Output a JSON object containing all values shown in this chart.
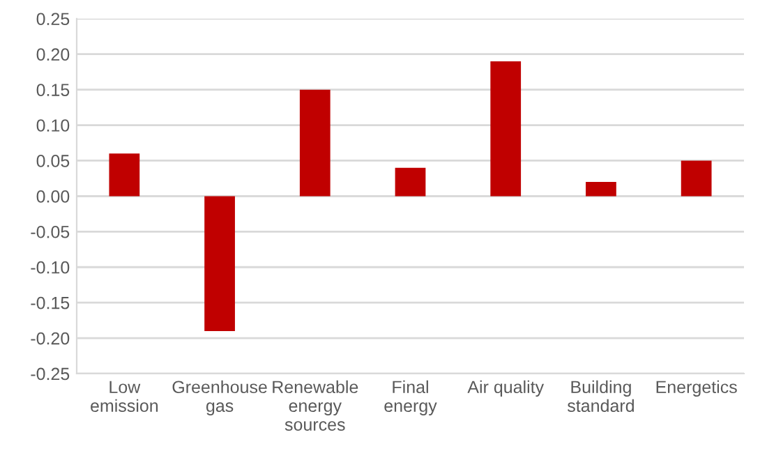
{
  "chart_data": {
    "type": "bar",
    "categories": [
      "Low emission",
      "Greenhouse gas",
      "Renewable energy sources",
      "Final energy",
      "Air quality",
      "Building standard",
      "Energetics"
    ],
    "values": [
      0.06,
      -0.19,
      0.15,
      0.04,
      0.19,
      0.02,
      0.05
    ],
    "color": "#c00000",
    "ylim": [
      -0.25,
      0.25
    ],
    "yticks": [
      {
        "value": -0.25,
        "label": "-0.25"
      },
      {
        "value": -0.2,
        "label": "-0.20"
      },
      {
        "value": -0.15,
        "label": "-0.15"
      },
      {
        "value": -0.1,
        "label": "-0.10"
      },
      {
        "value": -0.05,
        "label": "-0.05"
      },
      {
        "value": 0,
        "label": "0.00"
      },
      {
        "value": 0.05,
        "label": "0.05"
      },
      {
        "value": 0.1,
        "label": "0.10"
      },
      {
        "value": 0.15,
        "label": "0.15"
      },
      {
        "value": 0.2,
        "label": "0.20"
      },
      {
        "value": 0.25,
        "label": "0.25"
      }
    ],
    "grid": "y"
  }
}
